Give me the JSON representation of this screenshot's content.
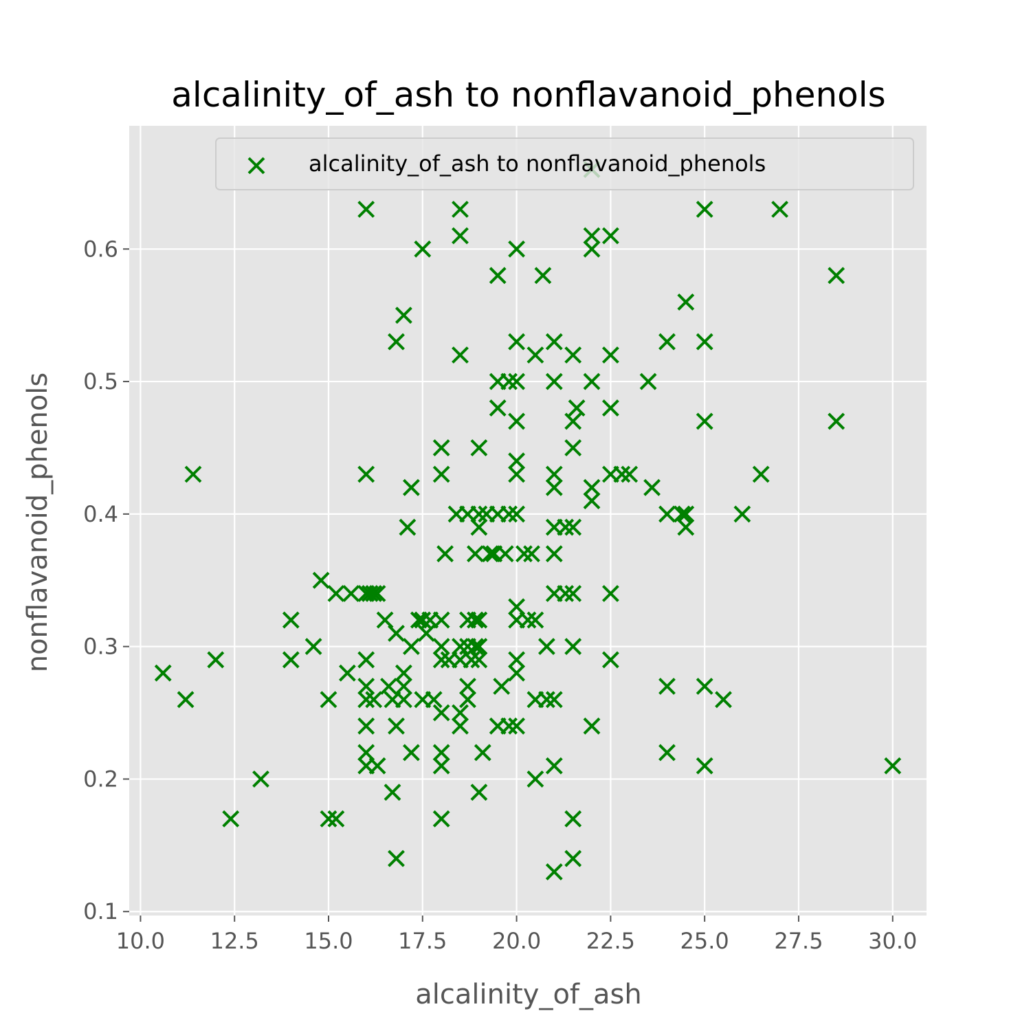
{
  "chart_data": {
    "type": "scatter",
    "title": "alcalinity_of_ash to nonflavanoid_phenols",
    "xlabel": "alcalinity_of_ash",
    "ylabel": "nonflavanoid_phenols",
    "xlim": [
      9.7,
      30.9
    ],
    "ylim": [
      0.097,
      0.693
    ],
    "xticks": [
      "10.0",
      "12.5",
      "15.0",
      "17.5",
      "20.0",
      "22.5",
      "25.0",
      "27.5",
      "30.0"
    ],
    "xtick_values": [
      10,
      12.5,
      15,
      17.5,
      20,
      22.5,
      25,
      27.5,
      30
    ],
    "yticks": [
      "0.1",
      "0.2",
      "0.3",
      "0.4",
      "0.5",
      "0.6"
    ],
    "ytick_values": [
      0.1,
      0.2,
      0.3,
      0.4,
      0.5,
      0.6
    ],
    "grid": true,
    "marker": "x",
    "color": "#008000",
    "background": "#e5e5e5",
    "legend": {
      "position": "top-right",
      "entries": [
        "alcalinity_of_ash to nonflavanoid_phenols"
      ]
    },
    "series": [
      {
        "name": "alcalinity_of_ash to nonflavanoid_phenols",
        "points": [
          [
            10.6,
            0.28
          ],
          [
            11.2,
            0.26
          ],
          [
            11.4,
            0.43
          ],
          [
            12.0,
            0.29
          ],
          [
            12.4,
            0.17
          ],
          [
            13.2,
            0.2
          ],
          [
            14.0,
            0.32
          ],
          [
            14.0,
            0.29
          ],
          [
            14.6,
            0.3
          ],
          [
            14.8,
            0.35
          ],
          [
            15.0,
            0.26
          ],
          [
            15.0,
            0.17
          ],
          [
            15.2,
            0.17
          ],
          [
            15.2,
            0.34
          ],
          [
            15.5,
            0.28
          ],
          [
            15.6,
            0.34
          ],
          [
            16.0,
            0.63
          ],
          [
            16.0,
            0.43
          ],
          [
            16.0,
            0.34
          ],
          [
            16.1,
            0.34
          ],
          [
            16.2,
            0.34
          ],
          [
            16.3,
            0.34
          ],
          [
            16.0,
            0.29
          ],
          [
            16.0,
            0.27
          ],
          [
            16.0,
            0.26
          ],
          [
            16.0,
            0.24
          ],
          [
            16.0,
            0.22
          ],
          [
            16.0,
            0.21
          ],
          [
            16.2,
            0.26
          ],
          [
            16.3,
            0.21
          ],
          [
            16.5,
            0.32
          ],
          [
            16.6,
            0.27
          ],
          [
            16.7,
            0.26
          ],
          [
            16.7,
            0.19
          ],
          [
            16.8,
            0.53
          ],
          [
            16.8,
            0.31
          ],
          [
            16.8,
            0.24
          ],
          [
            16.8,
            0.14
          ],
          [
            17.0,
            0.55
          ],
          [
            17.0,
            0.28
          ],
          [
            17.0,
            0.27
          ],
          [
            17.0,
            0.26
          ],
          [
            17.1,
            0.39
          ],
          [
            17.2,
            0.42
          ],
          [
            17.2,
            0.3
          ],
          [
            17.2,
            0.22
          ],
          [
            17.4,
            0.32
          ],
          [
            17.5,
            0.6
          ],
          [
            17.5,
            0.32
          ],
          [
            17.5,
            0.26
          ],
          [
            17.6,
            0.31
          ],
          [
            17.7,
            0.32
          ],
          [
            17.8,
            0.26
          ],
          [
            18.0,
            0.45
          ],
          [
            18.0,
            0.43
          ],
          [
            18.0,
            0.32
          ],
          [
            18.0,
            0.3
          ],
          [
            18.0,
            0.29
          ],
          [
            18.0,
            0.25
          ],
          [
            18.0,
            0.22
          ],
          [
            18.0,
            0.21
          ],
          [
            18.0,
            0.17
          ],
          [
            18.1,
            0.37
          ],
          [
            18.2,
            0.29
          ],
          [
            18.5,
            0.63
          ],
          [
            18.5,
            0.61
          ],
          [
            18.5,
            0.52
          ],
          [
            18.4,
            0.4
          ],
          [
            18.5,
            0.3
          ],
          [
            18.5,
            0.29
          ],
          [
            18.5,
            0.25
          ],
          [
            18.5,
            0.24
          ],
          [
            18.7,
            0.4
          ],
          [
            18.7,
            0.32
          ],
          [
            18.7,
            0.3
          ],
          [
            18.7,
            0.27
          ],
          [
            18.7,
            0.26
          ],
          [
            18.8,
            0.29
          ],
          [
            18.9,
            0.32
          ],
          [
            18.9,
            0.3
          ],
          [
            18.9,
            0.37
          ],
          [
            19.0,
            0.45
          ],
          [
            19.0,
            0.4
          ],
          [
            19.0,
            0.39
          ],
          [
            19.0,
            0.32
          ],
          [
            19.0,
            0.3
          ],
          [
            19.0,
            0.29
          ],
          [
            19.0,
            0.19
          ],
          [
            19.1,
            0.22
          ],
          [
            19.2,
            0.4
          ],
          [
            19.3,
            0.37
          ],
          [
            19.5,
            0.58
          ],
          [
            19.4,
            0.37
          ],
          [
            19.5,
            0.5
          ],
          [
            19.5,
            0.48
          ],
          [
            19.5,
            0.4
          ],
          [
            19.5,
            0.24
          ],
          [
            19.6,
            0.27
          ],
          [
            19.7,
            0.37
          ],
          [
            19.8,
            0.5
          ],
          [
            19.8,
            0.4
          ],
          [
            19.8,
            0.24
          ],
          [
            20.0,
            0.6
          ],
          [
            20.0,
            0.53
          ],
          [
            20.0,
            0.5
          ],
          [
            20.0,
            0.47
          ],
          [
            20.0,
            0.44
          ],
          [
            20.0,
            0.43
          ],
          [
            20.0,
            0.4
          ],
          [
            20.0,
            0.33
          ],
          [
            20.0,
            0.32
          ],
          [
            20.0,
            0.29
          ],
          [
            20.0,
            0.28
          ],
          [
            20.0,
            0.24
          ],
          [
            20.2,
            0.37
          ],
          [
            20.3,
            0.32
          ],
          [
            20.4,
            0.37
          ],
          [
            20.5,
            0.52
          ],
          [
            20.5,
            0.32
          ],
          [
            20.5,
            0.26
          ],
          [
            20.5,
            0.2
          ],
          [
            20.7,
            0.58
          ],
          [
            20.8,
            0.3
          ],
          [
            20.8,
            0.26
          ],
          [
            21.0,
            0.53
          ],
          [
            21.0,
            0.5
          ],
          [
            21.0,
            0.43
          ],
          [
            21.0,
            0.42
          ],
          [
            21.0,
            0.39
          ],
          [
            21.0,
            0.37
          ],
          [
            21.0,
            0.34
          ],
          [
            21.0,
            0.26
          ],
          [
            21.0,
            0.21
          ],
          [
            21.0,
            0.13
          ],
          [
            21.3,
            0.39
          ],
          [
            21.3,
            0.34
          ],
          [
            21.5,
            0.52
          ],
          [
            21.5,
            0.47
          ],
          [
            21.6,
            0.48
          ],
          [
            21.5,
            0.45
          ],
          [
            21.5,
            0.39
          ],
          [
            21.5,
            0.34
          ],
          [
            21.5,
            0.3
          ],
          [
            21.5,
            0.17
          ],
          [
            21.5,
            0.14
          ],
          [
            22.0,
            0.66
          ],
          [
            22.0,
            0.61
          ],
          [
            22.0,
            0.6
          ],
          [
            22.0,
            0.5
          ],
          [
            22.0,
            0.42
          ],
          [
            22.0,
            0.41
          ],
          [
            22.0,
            0.24
          ],
          [
            22.5,
            0.61
          ],
          [
            22.5,
            0.52
          ],
          [
            22.5,
            0.48
          ],
          [
            22.5,
            0.43
          ],
          [
            22.5,
            0.34
          ],
          [
            22.5,
            0.29
          ],
          [
            22.8,
            0.43
          ],
          [
            23.0,
            0.43
          ],
          [
            23.5,
            0.5
          ],
          [
            23.6,
            0.42
          ],
          [
            24.0,
            0.53
          ],
          [
            24.0,
            0.4
          ],
          [
            24.0,
            0.27
          ],
          [
            24.0,
            0.22
          ],
          [
            24.4,
            0.4
          ],
          [
            24.5,
            0.56
          ],
          [
            24.5,
            0.4
          ],
          [
            24.5,
            0.39
          ],
          [
            25.0,
            0.63
          ],
          [
            25.0,
            0.53
          ],
          [
            25.0,
            0.47
          ],
          [
            25.0,
            0.27
          ],
          [
            25.0,
            0.21
          ],
          [
            25.5,
            0.26
          ],
          [
            26.0,
            0.4
          ],
          [
            26.5,
            0.43
          ],
          [
            27.0,
            0.63
          ],
          [
            28.5,
            0.58
          ],
          [
            28.5,
            0.47
          ],
          [
            30.0,
            0.21
          ]
        ]
      }
    ]
  }
}
